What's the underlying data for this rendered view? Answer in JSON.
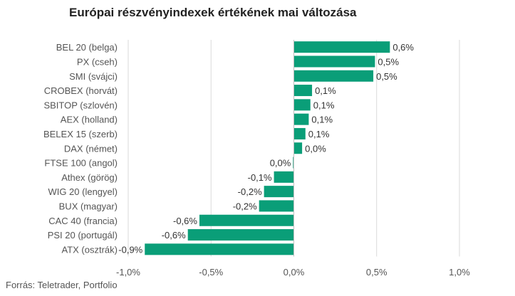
{
  "title": "Európai részvényindexek értékének mai változása",
  "source": "Forrás: Teletrader, Portfolio",
  "colors": {
    "bar": "#0a9e78",
    "grid": "#d9d9d9",
    "axis_text": "#555555",
    "label_text": "#333333"
  },
  "chart_data": {
    "type": "bar",
    "orientation": "horizontal",
    "title": "Európai részvényindexek értékének mai változása",
    "categories": [
      "BEL 20 (belga)",
      "PX (cseh)",
      "SMI (svájci)",
      "CROBEX (horvát)",
      "SBITOP (szlovén)",
      "AEX (holland)",
      "BELEX 15 (szerb)",
      "DAX (német)",
      "FTSE 100 (angol)",
      "Athex (görög)",
      "WIG 20 (lengyel)",
      "BUX (magyar)",
      "CAC 40 (francia)",
      "PSI 20 (portugál)",
      "ATX (osztrák)"
    ],
    "values": [
      0.58,
      0.49,
      0.48,
      0.11,
      0.1,
      0.09,
      0.07,
      0.05,
      -0.005,
      -0.12,
      -0.18,
      -0.21,
      -0.57,
      -0.64,
      -0.9
    ],
    "data_labels": [
      "0,6%",
      "0,5%",
      "0,5%",
      "0,1%",
      "0,1%",
      "0,1%",
      "0,1%",
      "0,0%",
      "0,0%",
      "-0,1%",
      "-0,2%",
      "-0,2%",
      "-0,6%",
      "-0,6%",
      "-0,9%"
    ],
    "xlim": [
      -1.0,
      1.0
    ],
    "xticks": [
      -1.0,
      -0.5,
      0.0,
      0.5,
      1.0
    ],
    "xtick_labels": [
      "-1,0%",
      "-0,5%",
      "0,0%",
      "0,5%",
      "1,0%"
    ],
    "grid": true,
    "legend": "none"
  }
}
